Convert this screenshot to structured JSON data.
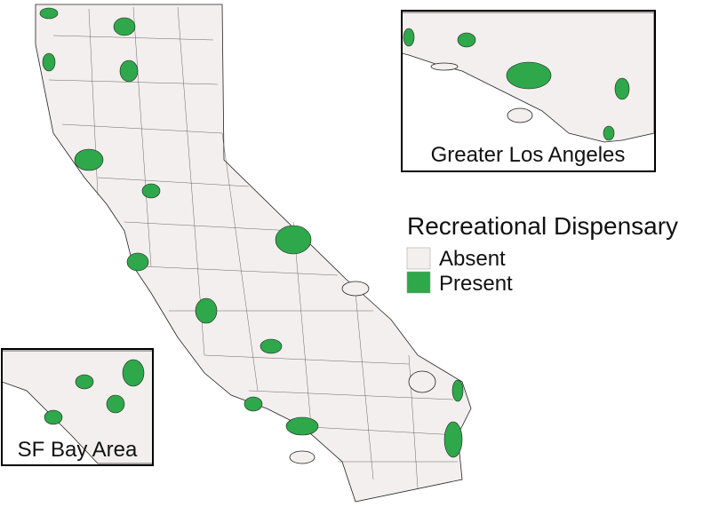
{
  "insets": [
    {
      "label": "Greater Los Angeles"
    },
    {
      "label": "SF Bay Area"
    }
  ],
  "legend": {
    "title": "Recreational Dispensary",
    "items": [
      {
        "label": "Absent",
        "color": "#f4efef"
      },
      {
        "label": "Present",
        "color": "#2ea84a"
      }
    ]
  }
}
